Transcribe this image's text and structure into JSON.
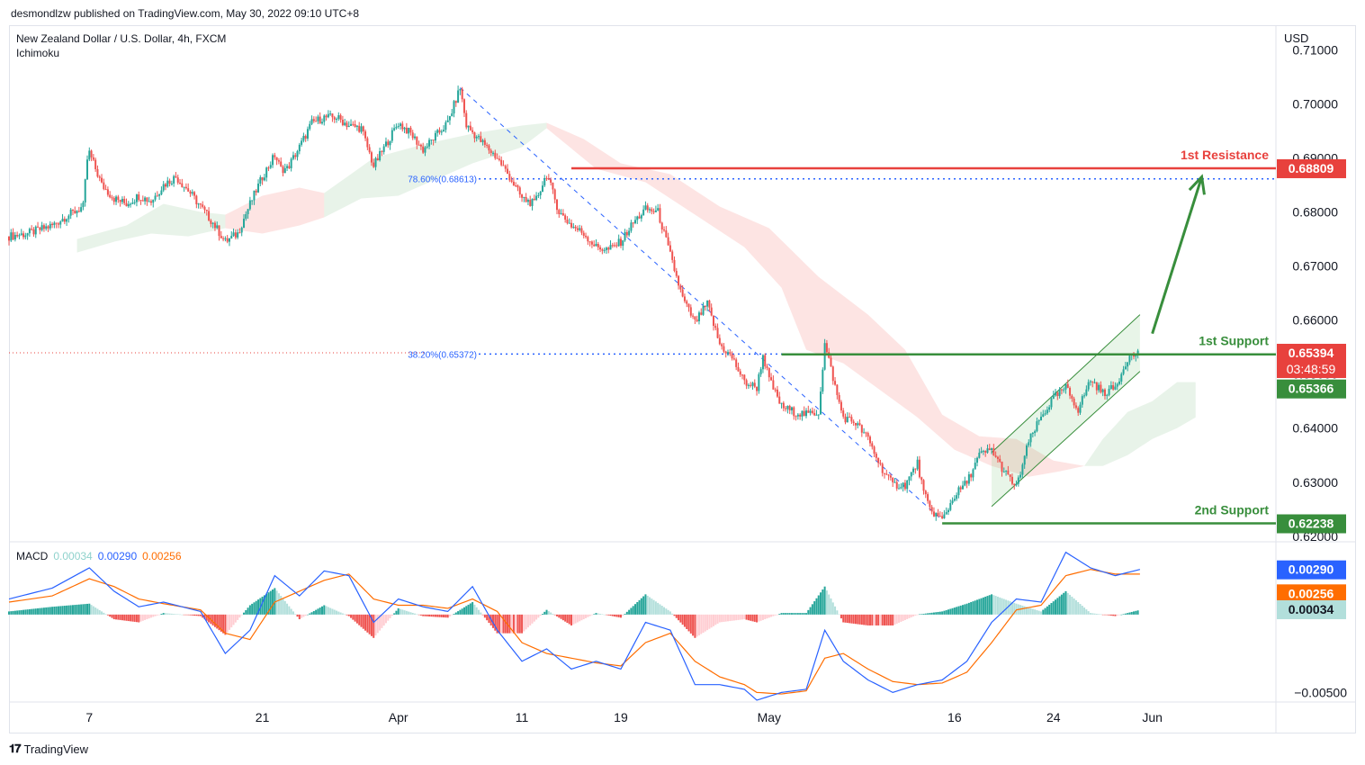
{
  "header": {
    "published": "desmondlzw published on TradingView.com, May 30, 2022 09:10 UTC+8"
  },
  "footer": {
    "brand": "TradingView",
    "logo_icon": "tradingview-logo-icon"
  },
  "chart_data": {
    "type": "candlestick",
    "title": "New Zealand Dollar / U.S. Dollar, 4h, FXCM",
    "indicator": "Ichimoku",
    "currency": "USD",
    "y_ticks": [
      "0.71000",
      "0.70000",
      "0.69000",
      "0.68000",
      "0.67000",
      "0.66000",
      "0.65000",
      "0.64000",
      "0.63000",
      "0.62000"
    ],
    "ylim": [
      0.6193,
      0.7144
    ],
    "x_ticks": [
      {
        "label": "7",
        "day": 7
      },
      {
        "label": "21",
        "day": 21
      },
      {
        "label": "Apr",
        "day": 32
      },
      {
        "label": "11",
        "day": 42
      },
      {
        "label": "19",
        "day": 50
      },
      {
        "label": "May",
        "day": 62
      },
      {
        "label": "16",
        "day": 77
      },
      {
        "label": "24",
        "day": 85
      },
      {
        "label": "Jun",
        "day": 93
      }
    ],
    "x_note": "day = days since Mar 1 2022",
    "xlim": [
      0.5,
      103
    ],
    "price_path": [
      [
        0.5,
        0.6755
      ],
      [
        2,
        0.676
      ],
      [
        4,
        0.6775
      ],
      [
        5,
        0.679
      ],
      [
        6.5,
        0.681
      ],
      [
        6.9,
        0.6915
      ],
      [
        7.5,
        0.688
      ],
      [
        8,
        0.685
      ],
      [
        9,
        0.6825
      ],
      [
        10,
        0.6815
      ],
      [
        11,
        0.683
      ],
      [
        12,
        0.682
      ],
      [
        13,
        0.685
      ],
      [
        14,
        0.6865
      ],
      [
        15,
        0.684
      ],
      [
        16,
        0.681
      ],
      [
        17,
        0.678
      ],
      [
        18,
        0.6745
      ],
      [
        19,
        0.676
      ],
      [
        20,
        0.6815
      ],
      [
        21,
        0.6865
      ],
      [
        22,
        0.6905
      ],
      [
        22.5,
        0.688
      ],
      [
        23,
        0.688
      ],
      [
        24,
        0.692
      ],
      [
        25,
        0.6965
      ],
      [
        26,
        0.6975
      ],
      [
        27,
        0.6975
      ],
      [
        28,
        0.696
      ],
      [
        29,
        0.6955
      ],
      [
        30,
        0.6885
      ],
      [
        31,
        0.6925
      ],
      [
        32,
        0.6965
      ],
      [
        33,
        0.6945
      ],
      [
        34,
        0.6915
      ],
      [
        35,
        0.694
      ],
      [
        36,
        0.6965
      ],
      [
        37,
        0.703
      ],
      [
        37.5,
        0.696
      ],
      [
        38.5,
        0.6935
      ],
      [
        40,
        0.69
      ],
      [
        41,
        0.6865
      ],
      [
        42,
        0.6825
      ],
      [
        43,
        0.6815
      ],
      [
        44,
        0.687
      ],
      [
        45,
        0.68
      ],
      [
        46,
        0.6775
      ],
      [
        47,
        0.676
      ],
      [
        48,
        0.6735
      ],
      [
        49,
        0.673
      ],
      [
        50,
        0.6745
      ],
      [
        51,
        0.678
      ],
      [
        52,
        0.6805
      ],
      [
        53,
        0.68
      ],
      [
        54,
        0.672
      ],
      [
        55,
        0.664
      ],
      [
        56,
        0.6595
      ],
      [
        57,
        0.663
      ],
      [
        58,
        0.6555
      ],
      [
        59,
        0.653
      ],
      [
        60,
        0.6485
      ],
      [
        61,
        0.6475
      ],
      [
        61.5,
        0.6535
      ],
      [
        62,
        0.649
      ],
      [
        63,
        0.644
      ],
      [
        64,
        0.643
      ],
      [
        65,
        0.6425
      ],
      [
        66,
        0.643
      ],
      [
        66.5,
        0.6555
      ],
      [
        67,
        0.651
      ],
      [
        67.5,
        0.646
      ],
      [
        68,
        0.642
      ],
      [
        69,
        0.641
      ],
      [
        70,
        0.638
      ],
      [
        71,
        0.633
      ],
      [
        72,
        0.6295
      ],
      [
        73,
        0.6295
      ],
      [
        74,
        0.6335
      ],
      [
        74.5,
        0.628
      ],
      [
        75,
        0.625
      ],
      [
        76,
        0.623
      ],
      [
        77,
        0.6275
      ],
      [
        78,
        0.63
      ],
      [
        79,
        0.635
      ],
      [
        80,
        0.636
      ],
      [
        81,
        0.632
      ],
      [
        82,
        0.629
      ],
      [
        83,
        0.6375
      ],
      [
        84,
        0.642
      ],
      [
        85,
        0.6455
      ],
      [
        86,
        0.6475
      ],
      [
        87,
        0.6435
      ],
      [
        88,
        0.649
      ],
      [
        89,
        0.6465
      ],
      [
        90,
        0.6475
      ],
      [
        91,
        0.653
      ],
      [
        92,
        0.654
      ]
    ],
    "ichimoku_cloud": [
      {
        "color": "green",
        "upper": [
          [
            6,
            0.675
          ],
          [
            10,
            0.6775
          ],
          [
            13,
            0.6815
          ],
          [
            16,
            0.68
          ],
          [
            18,
            0.6795
          ]
        ],
        "lower": [
          [
            6,
            0.6725
          ],
          [
            9,
            0.6745
          ],
          [
            12,
            0.676
          ],
          [
            15,
            0.6755
          ],
          [
            18,
            0.677
          ]
        ]
      },
      {
        "color": "red",
        "upper": [
          [
            18,
            0.6795
          ],
          [
            21,
            0.683
          ],
          [
            24,
            0.6845
          ],
          [
            26,
            0.6835
          ]
        ],
        "lower": [
          [
            18,
            0.677
          ],
          [
            21,
            0.676
          ],
          [
            24,
            0.6775
          ],
          [
            26,
            0.679
          ]
        ]
      },
      {
        "color": "green",
        "upper": [
          [
            26,
            0.6835
          ],
          [
            30,
            0.69
          ],
          [
            34,
            0.6925
          ],
          [
            38,
            0.6945
          ],
          [
            42,
            0.696
          ],
          [
            44,
            0.6965
          ]
        ],
        "lower": [
          [
            26,
            0.679
          ],
          [
            29,
            0.6825
          ],
          [
            32,
            0.683
          ],
          [
            35,
            0.686
          ],
          [
            38,
            0.689
          ],
          [
            42,
            0.692
          ],
          [
            44,
            0.6955
          ]
        ]
      },
      {
        "color": "red",
        "upper": [
          [
            44,
            0.6965
          ],
          [
            47,
            0.6935
          ],
          [
            50,
            0.689
          ],
          [
            54,
            0.687
          ],
          [
            58,
            0.681
          ],
          [
            62,
            0.677
          ],
          [
            66,
            0.668
          ],
          [
            70,
            0.661
          ],
          [
            73,
            0.6545
          ],
          [
            76,
            0.6425
          ],
          [
            79,
            0.6385
          ],
          [
            82,
            0.638
          ],
          [
            85,
            0.634
          ],
          [
            87.5,
            0.633
          ]
        ],
        "lower": [
          [
            44,
            0.6955
          ],
          [
            48,
            0.688
          ],
          [
            52,
            0.6855
          ],
          [
            56,
            0.6795
          ],
          [
            60,
            0.6735
          ],
          [
            63,
            0.666
          ],
          [
            65,
            0.6545
          ],
          [
            68,
            0.652
          ],
          [
            71,
            0.647
          ],
          [
            74,
            0.642
          ],
          [
            77,
            0.636
          ],
          [
            80,
            0.633
          ],
          [
            83,
            0.631
          ],
          [
            85.5,
            0.632
          ],
          [
            87.5,
            0.633
          ]
        ]
      },
      {
        "color": "green",
        "upper": [
          [
            87.5,
            0.633
          ],
          [
            89,
            0.638
          ],
          [
            91,
            0.643
          ],
          [
            93,
            0.645
          ],
          [
            95,
            0.6485
          ],
          [
            96.5,
            0.6485
          ]
        ],
        "lower": [
          [
            87.5,
            0.633
          ],
          [
            89,
            0.633
          ],
          [
            91,
            0.635
          ],
          [
            93,
            0.638
          ],
          [
            95,
            0.64
          ],
          [
            96.5,
            0.642
          ]
        ]
      }
    ],
    "levels": [
      {
        "name": "1st Resistance",
        "value": 0.68809,
        "label": "0.68809",
        "color": "#e8413d",
        "from_day": 46
      },
      {
        "name": "1st Support",
        "value": 0.65366,
        "label": "0.65366",
        "color": "#388e3c",
        "from_day": 63
      },
      {
        "name": "2nd Support",
        "value": 0.62238,
        "label": "0.62238",
        "color": "#388e3c",
        "from_day": 76
      }
    ],
    "fib_levels": [
      {
        "label": "78.60%(0.68613)",
        "value": 0.68613
      },
      {
        "label": "38.20%(0.65372)",
        "value": 0.65372
      }
    ],
    "last_price": {
      "value": 0.65394,
      "label": "0.65394",
      "countdown": "03:48:59",
      "color": "#e8413d"
    },
    "channel": {
      "lower": [
        [
          80,
          0.6255
        ],
        [
          92,
          0.6505
        ]
      ],
      "upper": [
        [
          80,
          0.6355
        ],
        [
          92,
          0.661
        ]
      ],
      "color": "#388e3c"
    },
    "fib_trend_line": [
      [
        37,
        0.703
      ],
      [
        76,
        0.623
      ]
    ],
    "projection_arrow": [
      [
        93,
        0.6575
      ],
      [
        97,
        0.6865
      ]
    ],
    "macd": {
      "label": "MACD",
      "hist": "0.00034",
      "macd": "0.00290",
      "signal": "0.00256",
      "hist_color": "#26a69a",
      "macd_color": "#2962ff",
      "signal_color": "#ff6d00",
      "ylim": [
        -0.0055,
        0.0045
      ],
      "y_tick": "−0.00500",
      "y_tick_value": -0.005,
      "macd_path": [
        [
          0.5,
          0.001
        ],
        [
          4,
          0.0017
        ],
        [
          7,
          0.003
        ],
        [
          9,
          0.0015
        ],
        [
          11,
          0.0005
        ],
        [
          13,
          0.0008
        ],
        [
          16,
          0.0002
        ],
        [
          18,
          -0.0025
        ],
        [
          20,
          -0.001
        ],
        [
          22,
          0.0025
        ],
        [
          24,
          0.0012
        ],
        [
          26,
          0.0028
        ],
        [
          28,
          0.0025
        ],
        [
          30,
          -0.0005
        ],
        [
          32,
          0.001
        ],
        [
          34,
          0.0005
        ],
        [
          36,
          0.0002
        ],
        [
          38,
          0.0018
        ],
        [
          40,
          -0.001
        ],
        [
          42,
          -0.003
        ],
        [
          44,
          -0.0022
        ],
        [
          46,
          -0.0035
        ],
        [
          48,
          -0.003
        ],
        [
          50,
          -0.0035
        ],
        [
          52,
          -0.0005
        ],
        [
          54,
          -0.001
        ],
        [
          56,
          -0.0045
        ],
        [
          58,
          -0.0045
        ],
        [
          60,
          -0.0048
        ],
        [
          61,
          -0.0055
        ],
        [
          63,
          -0.005
        ],
        [
          65,
          -0.0048
        ],
        [
          66.5,
          -0.001
        ],
        [
          68,
          -0.003
        ],
        [
          70,
          -0.0042
        ],
        [
          72,
          -0.005
        ],
        [
          74,
          -0.0045
        ],
        [
          76,
          -0.0042
        ],
        [
          78,
          -0.003
        ],
        [
          80,
          -0.0005
        ],
        [
          82,
          0.001
        ],
        [
          84,
          0.0008
        ],
        [
          86,
          0.004
        ],
        [
          88,
          0.003
        ],
        [
          90,
          0.0025
        ],
        [
          92,
          0.0029
        ]
      ],
      "signal_path": [
        [
          0.5,
          0.0008
        ],
        [
          4,
          0.0012
        ],
        [
          7,
          0.0023
        ],
        [
          9,
          0.0018
        ],
        [
          11,
          0.001
        ],
        [
          13,
          0.0007
        ],
        [
          16,
          0.0003
        ],
        [
          18,
          -0.0012
        ],
        [
          20,
          -0.0016
        ],
        [
          22,
          0.0008
        ],
        [
          24,
          0.0015
        ],
        [
          26,
          0.0022
        ],
        [
          28,
          0.0026
        ],
        [
          30,
          0.001
        ],
        [
          32,
          0.0006
        ],
        [
          34,
          0.0006
        ],
        [
          36,
          0.0004
        ],
        [
          38,
          0.001
        ],
        [
          40,
          0.0002
        ],
        [
          42,
          -0.0018
        ],
        [
          44,
          -0.0025
        ],
        [
          46,
          -0.0028
        ],
        [
          48,
          -0.0031
        ],
        [
          50,
          -0.0033
        ],
        [
          52,
          -0.0018
        ],
        [
          54,
          -0.0012
        ],
        [
          56,
          -0.003
        ],
        [
          58,
          -0.004
        ],
        [
          60,
          -0.0045
        ],
        [
          61,
          -0.005
        ],
        [
          63,
          -0.0051
        ],
        [
          65,
          -0.0049
        ],
        [
          66.5,
          -0.0028
        ],
        [
          68,
          -0.0025
        ],
        [
          70,
          -0.0035
        ],
        [
          72,
          -0.0043
        ],
        [
          74,
          -0.0045
        ],
        [
          76,
          -0.0044
        ],
        [
          78,
          -0.0037
        ],
        [
          80,
          -0.0018
        ],
        [
          82,
          0.0003
        ],
        [
          84,
          0.0006
        ],
        [
          86,
          0.0025
        ],
        [
          88,
          0.0029
        ],
        [
          90,
          0.0026
        ],
        [
          92,
          0.0026
        ]
      ]
    }
  }
}
